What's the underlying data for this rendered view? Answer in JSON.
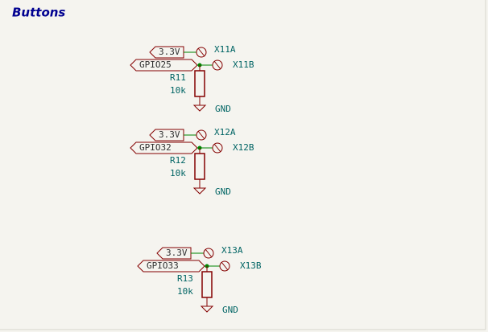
{
  "title": "Buttons",
  "groups": [
    {
      "power_label": "3.3V",
      "gpio_label": "GPIO25",
      "connector_a": "X11A",
      "connector_b": "X11B",
      "resistor_ref": "R11",
      "resistor_value": "10k",
      "ground": "GND"
    },
    {
      "power_label": "3.3V",
      "gpio_label": "GPIO32",
      "connector_a": "X12A",
      "connector_b": "X12B",
      "resistor_ref": "R12",
      "resistor_value": "10k",
      "ground": "GND"
    },
    {
      "power_label": "3.3V",
      "gpio_label": "GPIO33",
      "connector_a": "X13A",
      "connector_b": "X13B",
      "resistor_ref": "R13",
      "resistor_value": "10k",
      "ground": "GND"
    }
  ]
}
